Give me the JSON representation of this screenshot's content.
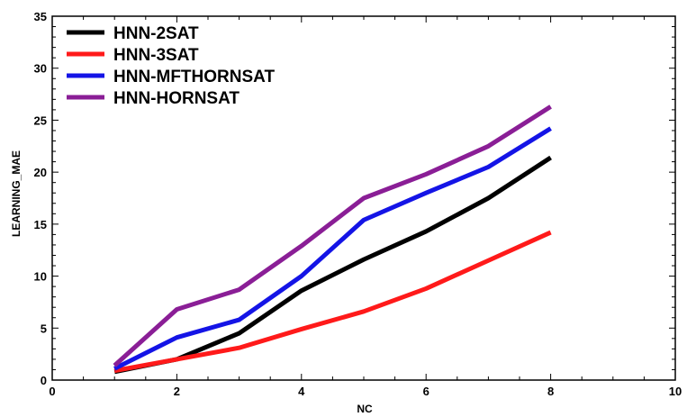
{
  "chart_data": {
    "type": "line",
    "title": "",
    "xlabel": "NC",
    "ylabel": "LEARNING_MAE",
    "xlim": [
      0,
      10
    ],
    "ylim": [
      0,
      35
    ],
    "x_ticks": [
      0,
      2,
      4,
      6,
      8,
      10
    ],
    "y_ticks": [
      0,
      5,
      10,
      15,
      20,
      25,
      30,
      35
    ],
    "grid": false,
    "legend_position": "top-left",
    "x": [
      1,
      2,
      3,
      4,
      5,
      6,
      7,
      8
    ],
    "series": [
      {
        "name": "HNN-2SAT",
        "color": "#000000",
        "values": [
          0.8,
          2.0,
          4.5,
          8.6,
          11.6,
          14.3,
          17.5,
          21.4
        ]
      },
      {
        "name": "HNN-3SAT",
        "color": "#ff1a1a",
        "values": [
          0.9,
          2.0,
          3.1,
          4.9,
          6.6,
          8.8,
          11.5,
          14.2
        ]
      },
      {
        "name": "HNN-MFTHORNSAT",
        "color": "#1414e6",
        "values": [
          1.1,
          4.1,
          5.8,
          10.0,
          15.4,
          18.0,
          20.5,
          24.2
        ]
      },
      {
        "name": "HNN-HORNSAT",
        "color": "#8a1e96",
        "values": [
          1.4,
          6.8,
          8.7,
          12.9,
          17.5,
          19.8,
          22.5,
          26.3
        ]
      }
    ]
  }
}
